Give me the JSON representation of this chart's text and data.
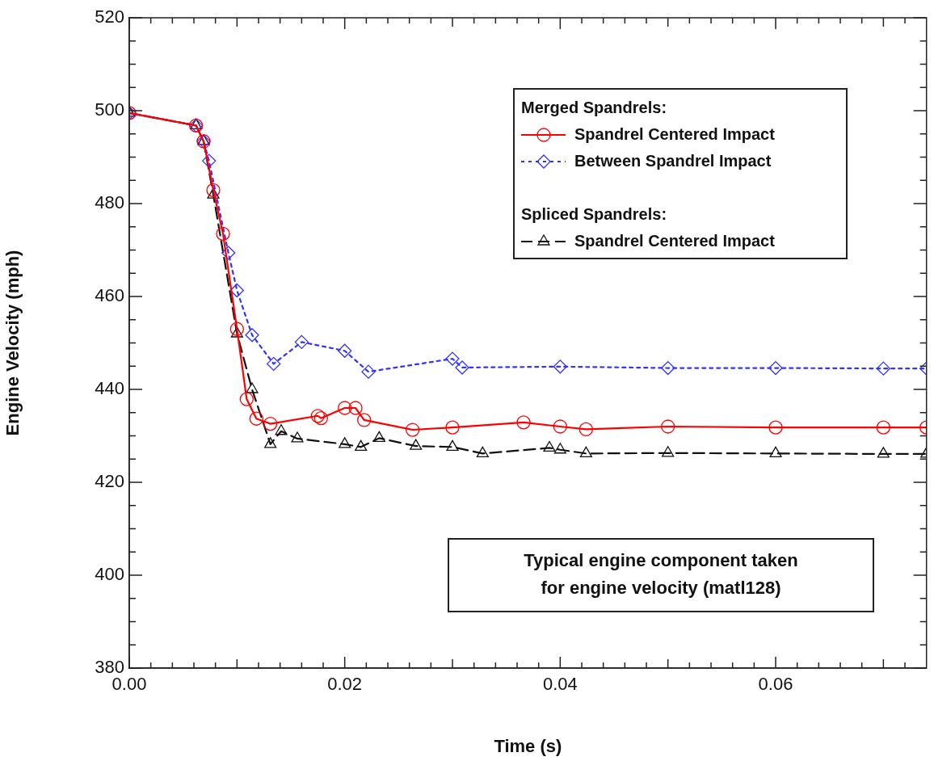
{
  "chart_data": {
    "type": "line",
    "xlabel": "Time (s)",
    "ylabel": "Engine Velocity (mph)",
    "legend_title": "Merged Spandrels:",
    "legend": "top right",
    "grid": false,
    "xlim": [
      0,
      0.074
    ],
    "ylim": [
      380,
      520
    ],
    "xticks": [
      {
        "value": 0,
        "label": "0.00"
      },
      {
        "value": 0.002,
        "label": null
      },
      {
        "value": 0.004,
        "label": null
      },
      {
        "value": 0.006,
        "label": null
      },
      {
        "value": 0.008,
        "label": null
      },
      {
        "value": 0.01,
        "label": null
      },
      {
        "value": 0.012,
        "label": null
      },
      {
        "value": 0.014,
        "label": null
      },
      {
        "value": 0.016,
        "label": null
      },
      {
        "value": 0.018,
        "label": null
      },
      {
        "value": 0.02,
        "label": "0.02"
      },
      {
        "value": 0.022,
        "label": null
      },
      {
        "value": 0.024,
        "label": null
      },
      {
        "value": 0.026,
        "label": null
      },
      {
        "value": 0.028,
        "label": null
      },
      {
        "value": 0.03,
        "label": null
      },
      {
        "value": 0.032,
        "label": null
      },
      {
        "value": 0.034,
        "label": null
      },
      {
        "value": 0.036,
        "label": null
      },
      {
        "value": 0.038,
        "label": null
      },
      {
        "value": 0.04,
        "label": "0.04"
      },
      {
        "value": 0.042,
        "label": null
      },
      {
        "value": 0.044,
        "label": null
      },
      {
        "value": 0.046,
        "label": null
      },
      {
        "value": 0.048,
        "label": null
      },
      {
        "value": 0.05,
        "label": null
      },
      {
        "value": 0.052,
        "label": null
      },
      {
        "value": 0.054,
        "label": null
      },
      {
        "value": 0.056,
        "label": null
      },
      {
        "value": 0.058,
        "label": null
      },
      {
        "value": 0.06,
        "label": "0.06"
      },
      {
        "value": 0.062,
        "label": null
      },
      {
        "value": 0.064,
        "label": null
      },
      {
        "value": 0.066,
        "label": null
      },
      {
        "value": 0.068,
        "label": null
      },
      {
        "value": 0.07,
        "label": null
      },
      {
        "value": 0.072,
        "label": null
      }
    ],
    "yticks": [
      380,
      {
        "value": 385,
        "label": null
      },
      {
        "value": 390,
        "label": null
      },
      {
        "value": 395,
        "label": null
      },
      400,
      {
        "value": 405,
        "label": null
      },
      {
        "value": 410,
        "label": null
      },
      {
        "value": 415,
        "label": null
      },
      420,
      {
        "value": 425,
        "label": null
      },
      {
        "value": 430,
        "label": null
      },
      {
        "value": 435,
        "label": null
      },
      440,
      {
        "value": 445,
        "label": null
      },
      {
        "value": 450,
        "label": null
      },
      {
        "value": 455,
        "label": null
      },
      460,
      {
        "value": 465,
        "label": null
      },
      {
        "value": 470,
        "label": null
      },
      {
        "value": 475,
        "label": null
      },
      480,
      {
        "value": 485,
        "label": null
      },
      {
        "value": 490,
        "label": null
      },
      {
        "value": 495,
        "label": null
      },
      500,
      {
        "value": 505,
        "label": null
      },
      {
        "value": 510,
        "label": null
      },
      {
        "value": 515,
        "label": null
      },
      520
    ],
    "series": [
      {
        "name": "Spandrel Centered Impact",
        "color": "#ff0000",
        "marker": "circle",
        "line_style": "solid",
        "x": [
          0,
          0.0062,
          0.0069,
          0.0078,
          0.0087,
          0.01,
          0.0109,
          0.0118,
          0.0131,
          0.0175,
          0.0178,
          0.02,
          0.021,
          0.0218,
          0.0263,
          0.03,
          0.0366,
          0.04,
          0.0424,
          0.05,
          0.06,
          0.07,
          0.074
        ],
        "values": [
          499.5,
          496.8,
          493.4,
          482.9,
          473.5,
          453,
          437.9,
          433.7,
          432.6,
          434.3,
          433.8,
          436,
          436,
          433.4,
          431.3,
          431.8,
          432.9,
          432,
          431.4,
          432,
          431.8,
          431.8,
          431.8
        ]
      },
      {
        "name": "Between Spandrel Impact",
        "color": "#3333ff",
        "marker": "diamond",
        "line_style": "dotted",
        "x": [
          0,
          0.0062,
          0.0069,
          0.0074,
          0.0092,
          0.01,
          0.0114,
          0.0134,
          0.016,
          0.02,
          0.0222,
          0.03,
          0.0309,
          0.04,
          0.05,
          0.06,
          0.07,
          0.074
        ],
        "values": [
          499.5,
          496.8,
          493.4,
          489.2,
          469.4,
          461.3,
          451.7,
          445.5,
          450.2,
          448.3,
          443.8,
          446.6,
          444.7,
          444.9,
          444.6,
          444.6,
          444.5,
          444.5
        ]
      },
      {
        "name": "Spandrel Centered Impact",
        "color": "#111111",
        "marker": "triangle",
        "line_style": "dashed",
        "x": [
          0,
          0.0062,
          0.0069,
          0.0078,
          0.01,
          0.0114,
          0.0131,
          0.0141,
          0.0156,
          0.02,
          0.0215,
          0.0232,
          0.0266,
          0.03,
          0.0328,
          0.039,
          0.04,
          0.0424,
          0.05,
          0.06,
          0.07,
          0.074
        ],
        "values": [
          499.5,
          496.8,
          493.4,
          481.9,
          452,
          440,
          428.2,
          431,
          429.4,
          428.2,
          427.6,
          429.5,
          427.8,
          427.6,
          426.2,
          427.4,
          427,
          426.2,
          426.3,
          426.2,
          426.1,
          426.1
        ]
      }
    ],
    "annotations": [
      "Spliced Spandrels:",
      "Typical engine component taken\nfor engine velocity (matl128)"
    ]
  }
}
